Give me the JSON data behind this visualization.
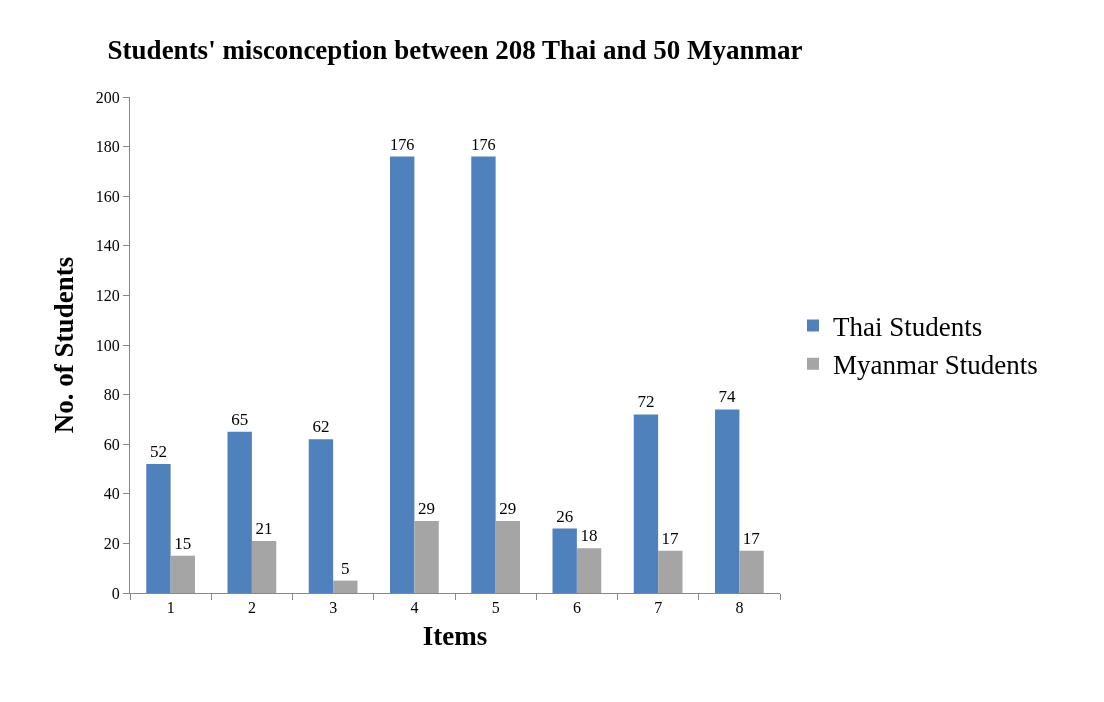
{
  "chart_data": {
    "type": "bar",
    "title": "Students' misconception between 208 Thai and 50 Myanmar",
    "xlabel": "Items",
    "ylabel": "No. of Students",
    "categories": [
      "1",
      "2",
      "3",
      "4",
      "5",
      "6",
      "7",
      "8"
    ],
    "series": [
      {
        "name": "Thai Students",
        "color": "#4f81bd",
        "values": [
          52,
          65,
          62,
          176,
          176,
          26,
          72,
          74
        ]
      },
      {
        "name": "Myanmar Students",
        "color": "#a5a5a5",
        "values": [
          15,
          21,
          5,
          29,
          29,
          18,
          17,
          17
        ]
      }
    ],
    "ylim": [
      0,
      200
    ],
    "yticks": [
      0,
      20,
      40,
      60,
      80,
      100,
      120,
      140,
      160,
      180,
      200
    ],
    "data_labels": true,
    "legend": "right"
  }
}
